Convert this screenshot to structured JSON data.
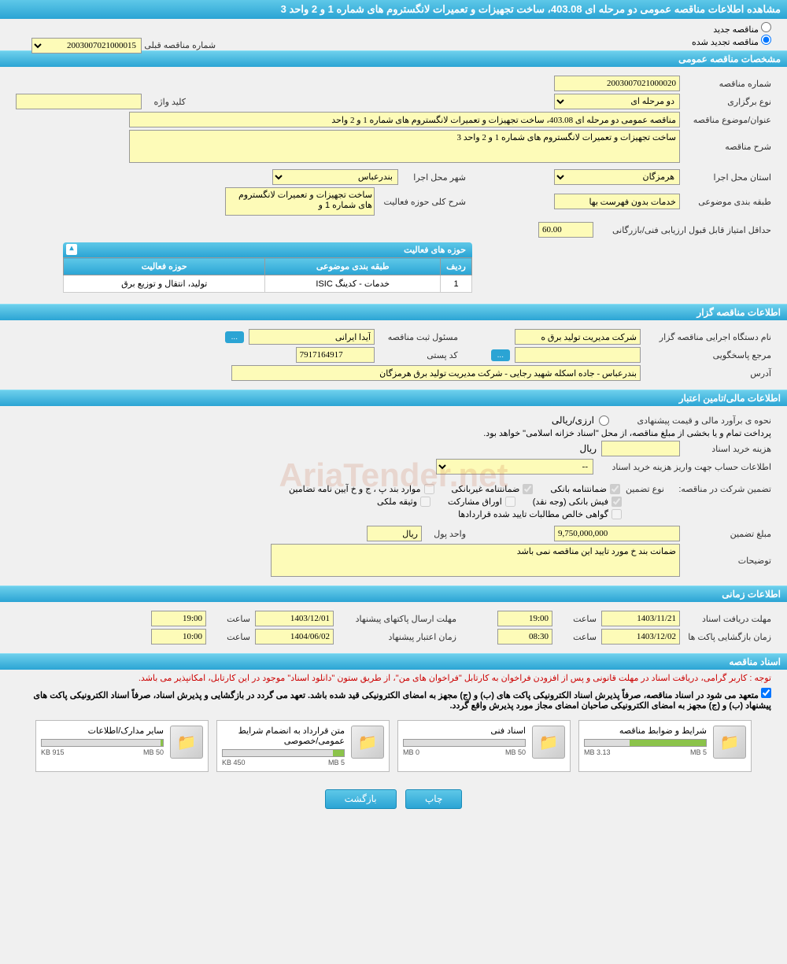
{
  "page_title": "مشاهده اطلاعات مناقصه عمومی دو مرحله ای 403.08، ساخت تجهیزات و تعمیرات لانگستروم های شماره 1 و 2 واحد 3",
  "radio": {
    "new_label": "مناقصه جدید",
    "renewed_label": "مناقصه تجدید شده"
  },
  "prev_tender": {
    "label": "شماره مناقصه قبلی",
    "value": "2003007021000015"
  },
  "sections": {
    "general": "مشخصات مناقصه عمومی",
    "holder": "اطلاعات مناقصه گزار",
    "financial": "اطلاعات مالی/تامین اعتبار",
    "timing": "اطلاعات زمانی",
    "documents": "اسناد مناقصه"
  },
  "general": {
    "tender_no_label": "شماره مناقصه",
    "tender_no": "2003007021000020",
    "type_label": "نوع برگزاری",
    "type_value": "دو مرحله ای",
    "keyword_label": "کلید واژه",
    "keyword_value": "",
    "subject_label": "عنوان/موضوع مناقصه",
    "subject_value": "مناقصه عمومی دو مرحله ای 403.08، ساخت تجهیزات و تعمیرات لانگستروم های شماره 1 و 2 واحد",
    "desc_label": "شرح مناقصه",
    "desc_value": "ساخت تجهیزات و تعمیرات لانگستروم های شماره 1 و 2 واحد 3",
    "province_label": "استان محل اجرا",
    "province_value": "هرمزگان",
    "city_label": "شهر محل اجرا",
    "city_value": "بندرعباس",
    "category_label": "طبقه بندی موضوعی",
    "category_value": "خدمات بدون فهرست بها",
    "scope_label": "شرح کلی حوزه فعالیت",
    "scope_value": "ساخت تجهیزات و تعمیرات لانگستروم های شماره 1 و",
    "min_score_label": "حداقل امتیاز قابل قبول ارزیابی فنی/بازرگانی",
    "min_score_value": "60.00"
  },
  "activity_table": {
    "title": "حوزه های فعالیت",
    "headers": [
      "ردیف",
      "طبقه بندی موضوعی",
      "حوزه فعالیت"
    ],
    "row": [
      "1",
      "خدمات - کدینگ ISIC",
      "تولید، انتقال و توزیع برق"
    ]
  },
  "holder": {
    "org_label": "نام دستگاه اجرایی مناقصه گزار",
    "org_value": "شرکت مدیریت تولید برق ه",
    "reg_label": "مسئول ثبت مناقصه",
    "reg_value": "آیدا ایرانی",
    "ref_label": "مرجع پاسخگویی",
    "postal_label": "کد پستی",
    "postal_value": "7917164917",
    "address_label": "آدرس",
    "address_value": "بندرعباس - جاده اسکله شهید رجایی - شرکت مدیریت تولید برق هرمزگان"
  },
  "financial": {
    "est_label": "نحوه ی برآورد مالی و قیمت پیشنهادی",
    "currency_label": "ارزی/ریالی",
    "payment_note": "پرداخت تمام و یا بخشی از مبلغ مناقصه، از محل \"اسناد خزانه اسلامی\" خواهد بود.",
    "doc_cost_label": "هزینه خرید اسناد",
    "doc_cost_unit": "ریال",
    "account_label": "اطلاعات حساب جهت واریز هزینه خرید اسناد",
    "account_value": "--",
    "guarantee_intro": "تضمین شرکت در مناقصه:",
    "guarantee_type_label": "نوع تضمین",
    "cb_bank": "ضمانتنامه بانکی",
    "cb_nonbank": "ضمانتنامه غیربانکی",
    "cb_clauses": "موارد بند پ ، ج و خ آیین نامه تضامین",
    "cb_cash": "فیش بانکی (وجه نقد)",
    "cb_bonds": "اوراق مشارکت",
    "cb_property": "وثیقه ملکی",
    "cb_cert": "گواهی خالص مطالبات تایید شده قراردادها",
    "guarantee_amt_label": "مبلغ تضمین",
    "guarantee_amt_value": "9,750,000,000",
    "unit_label": "واحد پول",
    "unit_value": "ریال",
    "notes_label": "توضیحات",
    "notes_value": "ضمانت بند خ مورد تایید این مناقصه نمی باشد"
  },
  "timing": {
    "doc_deadline_label": "مهلت دریافت اسناد",
    "doc_deadline_date": "1403/11/21",
    "doc_deadline_time": "19:00",
    "envelope_deadline_label": "مهلت ارسال پاکتهای پیشنهاد",
    "envelope_deadline_date": "1403/12/01",
    "envelope_deadline_time": "19:00",
    "opening_label": "زمان بازگشایی پاکت ها",
    "opening_date": "1403/12/02",
    "opening_time": "08:30",
    "validity_label": "زمان اعتبار پیشنهاد",
    "validity_date": "1404/06/02",
    "validity_time": "10:00",
    "time_label": "ساعت"
  },
  "documents": {
    "notice1": "توجه : کاربر گرامی، دریافت اسناد در مهلت قانونی و پس از افزودن فراخوان به کارتابل \"فراخوان های من\"، از طریق ستون \"دانلود اسناد\" موجود در این کارتابل، امکانپذیر می باشد.",
    "notice2": "متعهد می شود در اسناد مناقصه، صرفاً پذیرش اسناد الکترونیکی پاکت های (ب) و (ج) مجهز به امضای الکترونیکی قید شده باشد. تعهد می گردد در بازگشایی و پذیرش اسناد، صرفاً اسناد الکترونیکی پاکت های پیشنهاد (ب) و (ج) مجهز به امضای الکترونیکی صاحبان امضای مجاز مورد پذیرش واقع گردد.",
    "files": [
      {
        "title": "شرایط و ضوابط مناقصه",
        "used": "3.13 MB",
        "total": "5 MB",
        "pct": 63
      },
      {
        "title": "اسناد فنی",
        "used": "0 MB",
        "total": "50 MB",
        "pct": 0
      },
      {
        "title": "متن قرارداد به انضمام شرایط عمومی/خصوصی",
        "used": "450 KB",
        "total": "5 MB",
        "pct": 9
      },
      {
        "title": "سایر مدارک/اطلاعات",
        "used": "915 KB",
        "total": "50 MB",
        "pct": 2
      }
    ]
  },
  "buttons": {
    "print": "چاپ",
    "back": "بازگشت",
    "dots": "..."
  },
  "watermark": "AriaTender.net",
  "colors": {
    "header_top": "#5ec8e8",
    "header_bottom": "#2ba4d4",
    "input_bg": "#fdfbb8",
    "progress": "#8bc34a"
  }
}
